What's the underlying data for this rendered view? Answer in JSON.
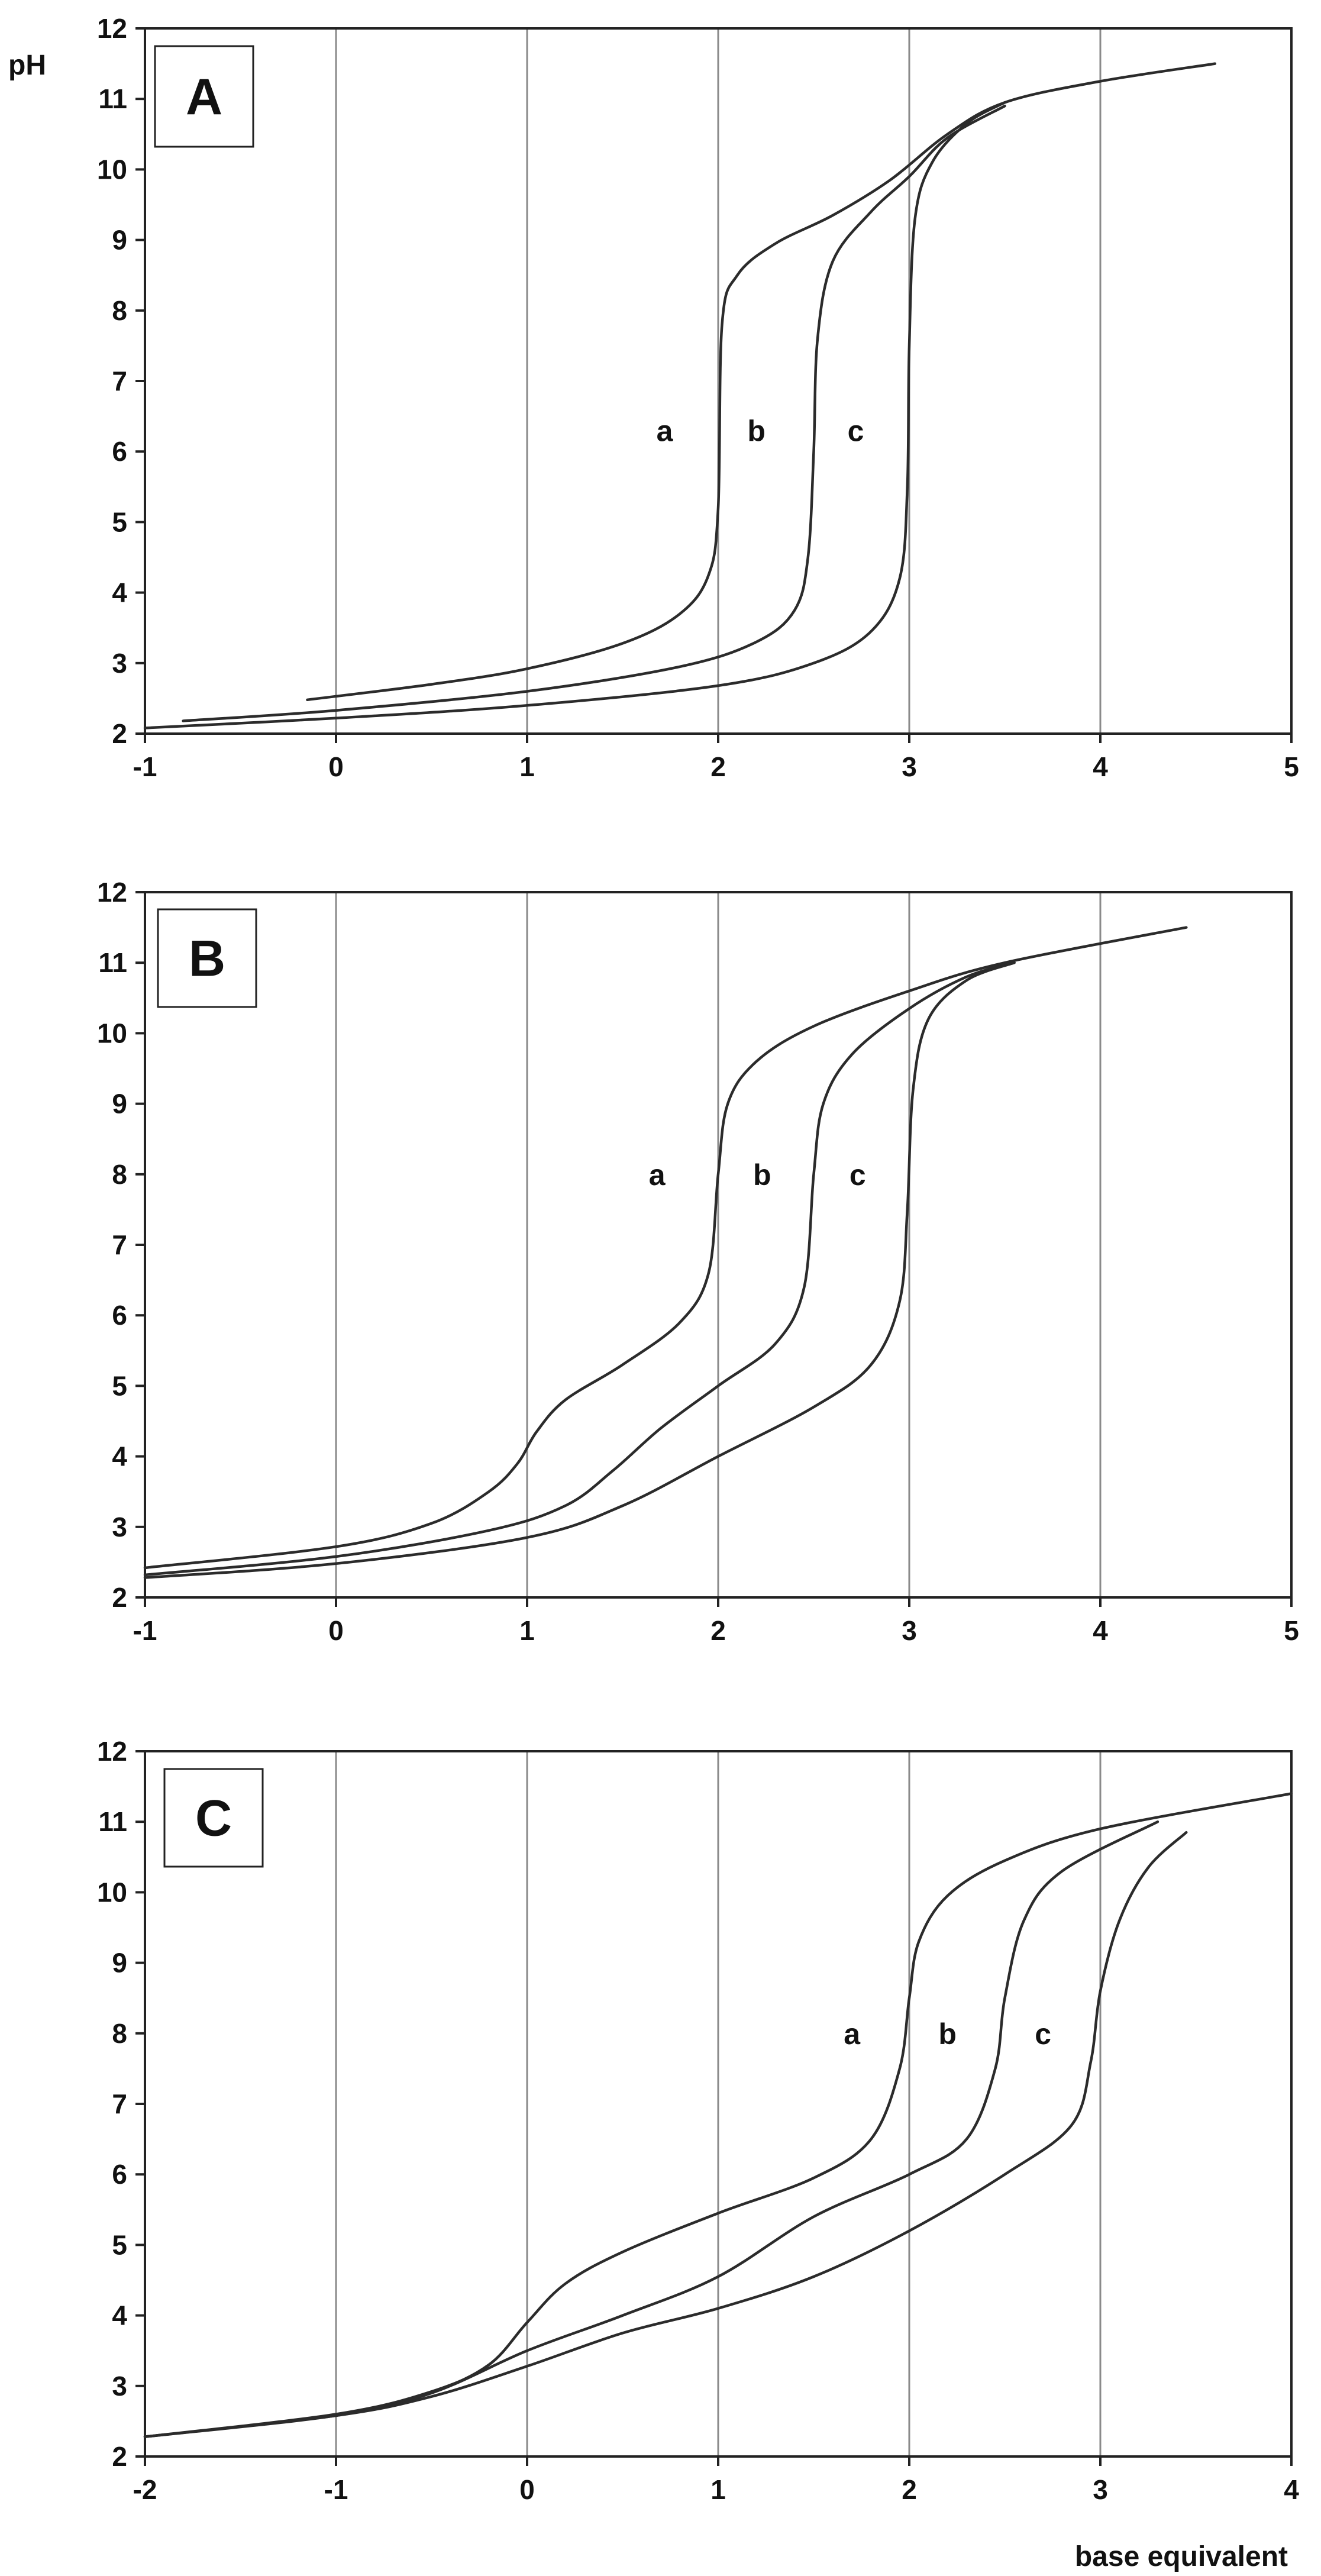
{
  "figure": {
    "xlabel": "base equivalent",
    "ylabel": "pH"
  },
  "chart_data": [
    {
      "type": "line",
      "panel": "A",
      "xlim": [
        -1,
        5
      ],
      "ylim": [
        2,
        12
      ],
      "x_ticks": [
        -1,
        0,
        1,
        2,
        3,
        4,
        5
      ],
      "y_ticks": [
        2,
        3,
        4,
        5,
        6,
        7,
        8,
        9,
        10,
        11,
        12
      ],
      "x_tick_labels": [
        "-1",
        "0",
        "1",
        "2",
        "3",
        "4",
        "5"
      ],
      "y_tick_labels": [
        "2",
        "3",
        "4",
        "5",
        "6",
        "7",
        "8",
        "9",
        "10",
        "11",
        "12"
      ],
      "grid": "vertical",
      "ylabel": "pH",
      "series": [
        {
          "name": "a",
          "label_at": [
            1.72,
            6.3
          ],
          "points": [
            [
              -0.15,
              2.48
            ],
            [
              0.5,
              2.7
            ],
            [
              1.0,
              2.92
            ],
            [
              1.5,
              3.28
            ],
            [
              1.8,
              3.7
            ],
            [
              1.95,
              4.25
            ],
            [
              2.0,
              5.2
            ],
            [
              2.02,
              7.8
            ],
            [
              2.1,
              8.5
            ],
            [
              2.3,
              8.95
            ],
            [
              2.6,
              9.35
            ],
            [
              2.9,
              9.85
            ],
            [
              3.2,
              10.5
            ],
            [
              3.5,
              10.95
            ],
            [
              4.0,
              11.25
            ],
            [
              4.6,
              11.5
            ]
          ]
        },
        {
          "name": "b",
          "label_at": [
            2.2,
            6.3
          ],
          "points": [
            [
              -0.8,
              2.18
            ],
            [
              0.0,
              2.33
            ],
            [
              1.0,
              2.6
            ],
            [
              1.8,
              2.95
            ],
            [
              2.2,
              3.3
            ],
            [
              2.4,
              3.75
            ],
            [
              2.47,
              4.5
            ],
            [
              2.5,
              6.0
            ],
            [
              2.52,
              7.6
            ],
            [
              2.6,
              8.7
            ],
            [
              2.8,
              9.4
            ],
            [
              3.0,
              9.9
            ],
            [
              3.2,
              10.45
            ],
            [
              3.5,
              10.9
            ]
          ]
        },
        {
          "name": "c",
          "label_at": [
            2.72,
            6.3
          ],
          "points": [
            [
              -1.0,
              2.08
            ],
            [
              0.0,
              2.22
            ],
            [
              1.0,
              2.4
            ],
            [
              2.0,
              2.68
            ],
            [
              2.5,
              3.0
            ],
            [
              2.8,
              3.45
            ],
            [
              2.95,
              4.2
            ],
            [
              2.99,
              5.5
            ],
            [
              3.0,
              7.5
            ],
            [
              3.03,
              9.3
            ],
            [
              3.12,
              10.1
            ],
            [
              3.3,
              10.65
            ],
            [
              3.5,
              10.95
            ]
          ]
        }
      ]
    },
    {
      "type": "line",
      "panel": "B",
      "xlim": [
        -1,
        5
      ],
      "ylim": [
        2,
        12
      ],
      "x_ticks": [
        -1,
        0,
        1,
        2,
        3,
        4,
        5
      ],
      "y_ticks": [
        2,
        3,
        4,
        5,
        6,
        7,
        8,
        9,
        10,
        11,
        12
      ],
      "x_tick_labels": [
        "-1",
        "0",
        "1",
        "2",
        "3",
        "4",
        "5"
      ],
      "y_tick_labels": [
        "2",
        "3",
        "4",
        "5",
        "6",
        "7",
        "8",
        "9",
        "10",
        "11",
        "12"
      ],
      "grid": "vertical",
      "series": [
        {
          "name": "a",
          "label_at": [
            1.68,
            8.0
          ],
          "points": [
            [
              -1.0,
              2.42
            ],
            [
              0.0,
              2.72
            ],
            [
              0.5,
              3.05
            ],
            [
              0.8,
              3.5
            ],
            [
              0.95,
              3.9
            ],
            [
              1.05,
              4.35
            ],
            [
              1.2,
              4.8
            ],
            [
              1.5,
              5.3
            ],
            [
              1.8,
              5.9
            ],
            [
              1.95,
              6.6
            ],
            [
              2.0,
              8.0
            ],
            [
              2.05,
              9.0
            ],
            [
              2.2,
              9.6
            ],
            [
              2.5,
              10.1
            ],
            [
              3.0,
              10.6
            ],
            [
              3.5,
              11.0
            ],
            [
              4.45,
              11.5
            ]
          ]
        },
        {
          "name": "b",
          "label_at": [
            2.23,
            8.0
          ],
          "points": [
            [
              -1.0,
              2.32
            ],
            [
              0.0,
              2.58
            ],
            [
              0.8,
              2.95
            ],
            [
              1.2,
              3.3
            ],
            [
              1.45,
              3.8
            ],
            [
              1.7,
              4.4
            ],
            [
              2.0,
              5.0
            ],
            [
              2.3,
              5.6
            ],
            [
              2.45,
              6.4
            ],
            [
              2.5,
              8.0
            ],
            [
              2.55,
              9.0
            ],
            [
              2.7,
              9.7
            ],
            [
              3.0,
              10.35
            ],
            [
              3.3,
              10.8
            ],
            [
              3.55,
              11.0
            ]
          ]
        },
        {
          "name": "c",
          "label_at": [
            2.73,
            8.0
          ],
          "points": [
            [
              -1.0,
              2.28
            ],
            [
              0.0,
              2.48
            ],
            [
              1.0,
              2.85
            ],
            [
              1.5,
              3.3
            ],
            [
              2.0,
              4.0
            ],
            [
              2.5,
              4.7
            ],
            [
              2.8,
              5.3
            ],
            [
              2.95,
              6.2
            ],
            [
              2.99,
              7.5
            ],
            [
              3.02,
              9.2
            ],
            [
              3.1,
              10.2
            ],
            [
              3.3,
              10.75
            ],
            [
              3.55,
              11.0
            ]
          ]
        }
      ]
    },
    {
      "type": "line",
      "panel": "C",
      "xlim": [
        -2,
        4
      ],
      "ylim": [
        2,
        12
      ],
      "x_ticks": [
        -2,
        -1,
        0,
        1,
        2,
        3,
        4
      ],
      "y_ticks": [
        2,
        3,
        4,
        5,
        6,
        7,
        8,
        9,
        10,
        11,
        12
      ],
      "x_tick_labels": [
        "-2",
        "-1",
        "0",
        "1",
        "2",
        "3",
        "4"
      ],
      "y_tick_labels": [
        "2",
        "3",
        "4",
        "5",
        "6",
        "7",
        "8",
        "9",
        "10",
        "11",
        "12"
      ],
      "grid": "vertical",
      "xlabel": "base equivalent",
      "series": [
        {
          "name": "a",
          "label_at": [
            1.7,
            8.0
          ],
          "points": [
            [
              -2.0,
              2.28
            ],
            [
              -1.0,
              2.6
            ],
            [
              -0.5,
              2.92
            ],
            [
              -0.2,
              3.3
            ],
            [
              0.0,
              3.9
            ],
            [
              0.2,
              4.45
            ],
            [
              0.5,
              4.9
            ],
            [
              1.0,
              5.45
            ],
            [
              1.5,
              5.95
            ],
            [
              1.8,
              6.5
            ],
            [
              1.95,
              7.5
            ],
            [
              2.0,
              8.5
            ],
            [
              2.05,
              9.3
            ],
            [
              2.2,
              9.95
            ],
            [
              2.5,
              10.45
            ],
            [
              3.0,
              10.9
            ],
            [
              4.0,
              11.4
            ]
          ]
        },
        {
          "name": "b",
          "label_at": [
            2.2,
            8.0
          ],
          "points": [
            [
              -2.0,
              2.28
            ],
            [
              -1.0,
              2.58
            ],
            [
              -0.5,
              2.9
            ],
            [
              0.0,
              3.5
            ],
            [
              0.5,
              4.0
            ],
            [
              1.0,
              4.55
            ],
            [
              1.5,
              5.4
            ],
            [
              2.0,
              6.0
            ],
            [
              2.3,
              6.5
            ],
            [
              2.45,
              7.5
            ],
            [
              2.5,
              8.5
            ],
            [
              2.6,
              9.6
            ],
            [
              2.8,
              10.3
            ],
            [
              3.3,
              11.0
            ]
          ]
        },
        {
          "name": "c",
          "label_at": [
            2.7,
            8.0
          ],
          "points": [
            [
              -2.0,
              2.28
            ],
            [
              -1.0,
              2.58
            ],
            [
              -0.5,
              2.85
            ],
            [
              0.0,
              3.28
            ],
            [
              0.5,
              3.75
            ],
            [
              1.0,
              4.1
            ],
            [
              1.5,
              4.55
            ],
            [
              2.0,
              5.2
            ],
            [
              2.5,
              6.0
            ],
            [
              2.85,
              6.7
            ],
            [
              2.95,
              7.6
            ],
            [
              3.0,
              8.6
            ],
            [
              3.1,
              9.6
            ],
            [
              3.25,
              10.35
            ],
            [
              3.45,
              10.85
            ]
          ]
        }
      ]
    }
  ]
}
